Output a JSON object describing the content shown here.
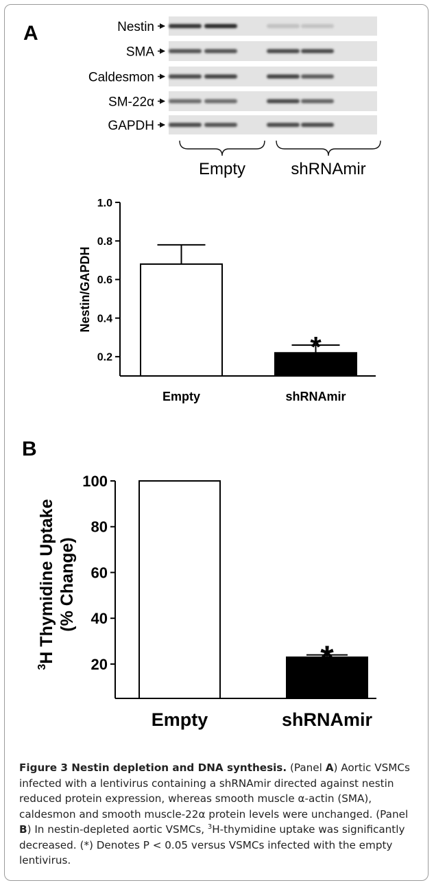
{
  "blot": {
    "panel_label": "A",
    "bands": [
      "Nestin",
      "SMA",
      "Caldesmon",
      "SM-22α",
      "GAPDH"
    ],
    "groups": [
      "Empty",
      "shRNAmir"
    ]
  },
  "panel_b_label": "B",
  "chart_data": [
    {
      "type": "bar",
      "categories": [
        "Empty",
        "shRNAmir"
      ],
      "values": [
        0.68,
        0.22
      ],
      "errors": [
        0.1,
        0.04
      ],
      "significance": [
        "",
        "*"
      ],
      "bar_colors": [
        "#ffffff",
        "#000000"
      ],
      "ylabel": "Nestin/GAPDH",
      "ylim": [
        0.1,
        1.0
      ],
      "yticks": [
        0.2,
        0.4,
        0.6,
        0.8,
        1.0
      ],
      "ytick_labels": [
        "0.2",
        "0.4",
        "0.6",
        "0.8",
        "1.0"
      ]
    },
    {
      "type": "bar",
      "categories": [
        "Empty",
        "shRNAmir"
      ],
      "values": [
        100,
        23
      ],
      "errors": [
        0,
        1
      ],
      "significance": [
        "",
        "*"
      ],
      "bar_colors": [
        "#ffffff",
        "#000000"
      ],
      "ylabel_sup": "3",
      "ylabel_line1": "H Thymidine Uptake",
      "ylabel_line2": "(% Change)",
      "ylim": [
        5,
        100
      ],
      "yticks": [
        20,
        40,
        60,
        80,
        100
      ],
      "ytick_labels": [
        "20",
        "40",
        "60",
        "80",
        "100"
      ]
    }
  ],
  "caption": {
    "title": "Figure 3 Nestin depletion and DNA synthesis.",
    "t1": " (Panel ",
    "a": "A",
    "t2": ") Aortic VSMCs infected with a lentivirus containing a shRNAmir directed against nestin reduced protein expression, whereas smooth muscle α-actin (SMA), caldesmon and smooth muscle-22α protein levels were unchanged. (Panel ",
    "b": "B",
    "t3": ") In nestin-depleted aortic VSMCs, ",
    "sup": "3",
    "t4": "H-thymidine uptake was significantly decreased. (*) Denotes P < 0.05 versus VSMCs infected with the empty lentivirus."
  }
}
